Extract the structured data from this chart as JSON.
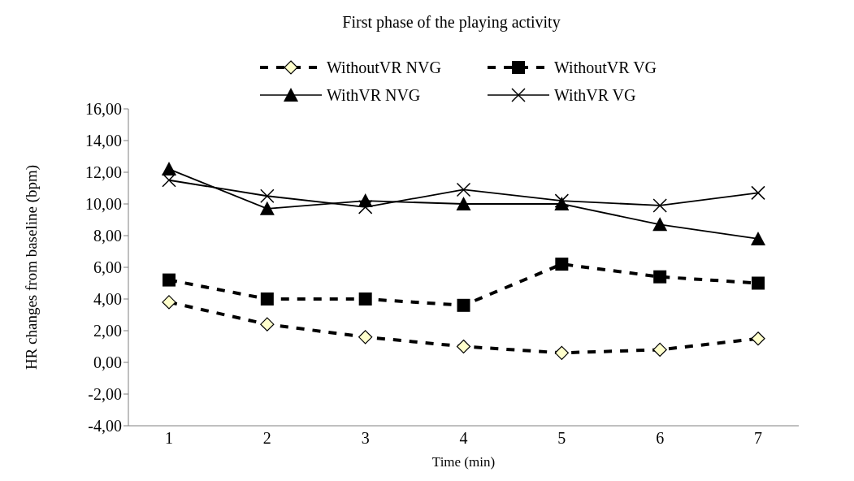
{
  "chart_data": {
    "type": "line",
    "title": "First phase of the playing activity",
    "xlabel": "Time (min)",
    "ylabel": "HR changes from baseline (bpm)",
    "categories": [
      "1",
      "2",
      "3",
      "4",
      "5",
      "6",
      "7"
    ],
    "series": [
      {
        "name": "WithoutVR  NVG",
        "color": "#000000",
        "marker": "diamond",
        "line_style": "dashed",
        "values": [
          3.8,
          2.4,
          1.6,
          1.0,
          0.6,
          0.8,
          1.5
        ]
      },
      {
        "name": "WithoutVR  VG",
        "color": "#000000",
        "marker": "square",
        "line_style": "dashed",
        "values": [
          5.2,
          4.0,
          4.0,
          3.6,
          6.2,
          5.4,
          5.0
        ]
      },
      {
        "name": "WithVR  NVG",
        "color": "#000000",
        "marker": "triangle",
        "line_style": "solid",
        "values": [
          12.2,
          9.7,
          10.2,
          10.0,
          10.0,
          8.7,
          7.8
        ]
      },
      {
        "name": "WithVR  VG",
        "color": "#000000",
        "marker": "cross",
        "line_style": "solid",
        "values": [
          11.5,
          10.5,
          9.8,
          10.9,
          10.2,
          9.9,
          10.7
        ]
      }
    ],
    "ylim": [
      -4,
      16
    ],
    "yticks": [
      {
        "value": -4,
        "label": "-4,00"
      },
      {
        "value": -2,
        "label": "-2,00"
      },
      {
        "value": 0,
        "label": "0,00"
      },
      {
        "value": 2,
        "label": "2,00"
      },
      {
        "value": 4,
        "label": "4,00"
      },
      {
        "value": 6,
        "label": "6,00"
      },
      {
        "value": 8,
        "label": "8,00"
      },
      {
        "value": 10,
        "label": "10,00"
      },
      {
        "value": 12,
        "label": "12,00"
      },
      {
        "value": 14,
        "label": "14,00"
      },
      {
        "value": 16,
        "label": "16,00"
      }
    ],
    "grid": false,
    "legend": "top"
  }
}
